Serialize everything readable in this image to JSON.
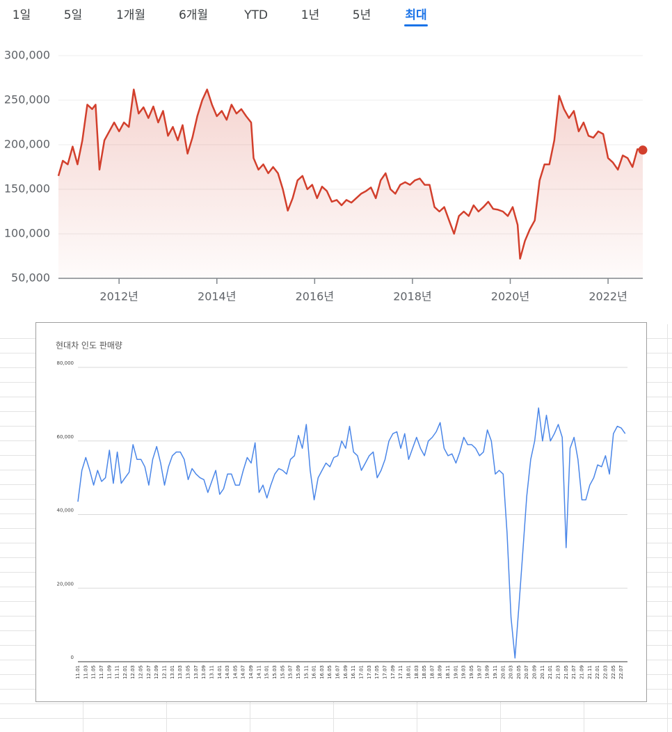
{
  "tabs": [
    "1일",
    "5일",
    "1개월",
    "6개월",
    "YTD",
    "1년",
    "5년",
    "최대"
  ],
  "active_tab_index": 7,
  "chart_data": [
    {
      "type": "area-line",
      "color": "#d23f2c",
      "grid": true,
      "xlim": [
        2010.76,
        2022.71
      ],
      "ylim": [
        50000,
        300000
      ],
      "xticks": [
        {
          "value": 2012,
          "label": "2012년"
        },
        {
          "value": 2014,
          "label": "2014년"
        },
        {
          "value": 2016,
          "label": "2016년"
        },
        {
          "value": 2018,
          "label": "2018년"
        },
        {
          "value": 2020,
          "label": "2020년"
        },
        {
          "value": 2022,
          "label": "2022년"
        }
      ],
      "yticks": [
        {
          "value": 50000,
          "label": "50,000"
        },
        {
          "value": 100000,
          "label": "100,000"
        },
        {
          "value": 150000,
          "label": "150,000"
        },
        {
          "value": 200000,
          "label": "200,000"
        },
        {
          "value": 250000,
          "label": "250,000"
        },
        {
          "value": 300000,
          "label": "300,000"
        }
      ],
      "x": [
        2010.76,
        2010.85,
        2010.95,
        2011.05,
        2011.15,
        2011.25,
        2011.35,
        2011.45,
        2011.52,
        2011.6,
        2011.7,
        2011.8,
        2011.9,
        2012.0,
        2012.1,
        2012.2,
        2012.3,
        2012.4,
        2012.5,
        2012.6,
        2012.7,
        2012.8,
        2012.9,
        2013.0,
        2013.1,
        2013.2,
        2013.3,
        2013.4,
        2013.5,
        2013.6,
        2013.7,
        2013.8,
        2013.9,
        2014.0,
        2014.1,
        2014.2,
        2014.3,
        2014.4,
        2014.5,
        2014.6,
        2014.7,
        2014.75,
        2014.85,
        2014.95,
        2015.05,
        2015.15,
        2015.25,
        2015.35,
        2015.45,
        2015.55,
        2015.65,
        2015.75,
        2015.85,
        2015.95,
        2016.05,
        2016.15,
        2016.25,
        2016.35,
        2016.45,
        2016.55,
        2016.65,
        2016.75,
        2016.85,
        2016.95,
        2017.05,
        2017.15,
        2017.25,
        2017.35,
        2017.45,
        2017.55,
        2017.65,
        2017.75,
        2017.85,
        2017.95,
        2018.05,
        2018.15,
        2018.25,
        2018.35,
        2018.45,
        2018.55,
        2018.65,
        2018.75,
        2018.85,
        2018.95,
        2019.05,
        2019.15,
        2019.25,
        2019.35,
        2019.45,
        2019.55,
        2019.65,
        2019.75,
        2019.85,
        2019.95,
        2020.05,
        2020.15,
        2020.2,
        2020.3,
        2020.4,
        2020.5,
        2020.6,
        2020.7,
        2020.8,
        2020.9,
        2021.0,
        2021.1,
        2021.2,
        2021.3,
        2021.4,
        2021.5,
        2021.6,
        2021.7,
        2021.8,
        2021.9,
        2022.0,
        2022.1,
        2022.2,
        2022.3,
        2022.4,
        2022.5,
        2022.6,
        2022.71
      ],
      "values": [
        165000,
        182000,
        178000,
        198000,
        178000,
        205000,
        245000,
        240000,
        245000,
        172000,
        205000,
        215000,
        225000,
        215000,
        225000,
        220000,
        262000,
        235000,
        242000,
        230000,
        243000,
        225000,
        238000,
        210000,
        220000,
        205000,
        222000,
        190000,
        208000,
        232000,
        250000,
        262000,
        245000,
        232000,
        238000,
        228000,
        245000,
        235000,
        240000,
        232000,
        225000,
        185000,
        172000,
        178000,
        168000,
        175000,
        168000,
        150000,
        126000,
        140000,
        160000,
        165000,
        150000,
        155000,
        140000,
        153000,
        148000,
        136000,
        138000,
        132000,
        138000,
        135000,
        140000,
        145000,
        148000,
        152000,
        140000,
        160000,
        168000,
        150000,
        145000,
        155000,
        158000,
        155000,
        160000,
        162000,
        155000,
        155000,
        130000,
        125000,
        130000,
        115000,
        100000,
        120000,
        125000,
        120000,
        132000,
        125000,
        130000,
        136000,
        128000,
        127000,
        125000,
        120000,
        130000,
        110000,
        72000,
        92000,
        105000,
        115000,
        160000,
        178000,
        178000,
        205000,
        255000,
        240000,
        230000,
        238000,
        215000,
        225000,
        210000,
        208000,
        215000,
        212000,
        185000,
        180000,
        172000,
        188000,
        185000,
        175000,
        195000,
        194000
      ]
    },
    {
      "type": "line",
      "title": "현대차 인도 판매량",
      "color": "#4a86e8",
      "grid": true,
      "ylim": [
        0,
        80000
      ],
      "yticks": [
        0,
        {
          "value": 20000,
          "label": "20,000"
        },
        {
          "value": 40000,
          "label": "40,000"
        },
        {
          "value": 60000,
          "label": "60,000"
        },
        {
          "value": 80000,
          "label": "80,000"
        }
      ],
      "categories": [
        "11.01",
        null,
        "11.03",
        null,
        "11.05",
        null,
        "11.07",
        null,
        "11.09",
        null,
        "11.11",
        null,
        "12.01",
        null,
        "12.03",
        null,
        "12.05",
        null,
        "12.07",
        null,
        "12.09",
        null,
        "12.11",
        null,
        "13.01",
        null,
        "13.03",
        null,
        "13.05",
        null,
        "13.07",
        null,
        "13.09",
        null,
        "13.11",
        null,
        "14.01",
        null,
        "14.03",
        null,
        "14.05",
        null,
        "14.07",
        null,
        "14.09",
        null,
        "14.11",
        null,
        "15.01",
        null,
        "15.03",
        null,
        "15.05",
        null,
        "15.07",
        null,
        "15.09",
        null,
        "15.11",
        null,
        "16.01",
        null,
        "16.03",
        null,
        "16.05",
        null,
        "16.07",
        null,
        "16.09",
        null,
        "16.11",
        null,
        "17.01",
        null,
        "17.03",
        null,
        "17.05",
        null,
        "17.07",
        null,
        "17.09",
        null,
        "17.11",
        null,
        "18.01",
        null,
        "18.03",
        null,
        "18.05",
        null,
        "18.07",
        null,
        "18.09",
        null,
        "18.11",
        null,
        "19.01",
        null,
        "19.03",
        null,
        "19.05",
        null,
        "19.07",
        null,
        "19.09",
        null,
        "19.11",
        null,
        "20.01",
        null,
        "20.03",
        null,
        "20.05",
        null,
        "20.07",
        null,
        "20.09",
        null,
        "20.11",
        null,
        "21.01",
        null,
        "21.03",
        null,
        "21.05",
        null,
        "21.07",
        null,
        "21.09",
        null,
        "21.11",
        null,
        "22.01",
        null,
        "22.03",
        null,
        "22.05",
        null,
        "22.07",
        null
      ],
      "values": [
        43500,
        52000,
        55500,
        52000,
        48000,
        52000,
        49000,
        50000,
        57500,
        48500,
        57000,
        48500,
        50000,
        51500,
        59000,
        55000,
        55000,
        53000,
        48000,
        55000,
        58500,
        54000,
        48000,
        53000,
        56000,
        57000,
        57000,
        55000,
        49500,
        52500,
        51000,
        50000,
        49500,
        46000,
        49000,
        52000,
        45500,
        47000,
        51000,
        51000,
        48000,
        48000,
        52000,
        55500,
        54000,
        59500,
        46000,
        48000,
        44500,
        48000,
        51000,
        52500,
        52000,
        51000,
        55000,
        56000,
        61500,
        58000,
        64500,
        52000,
        44000,
        50000,
        52000,
        54000,
        53000,
        55500,
        56000,
        60000,
        58000,
        64000,
        57000,
        56000,
        52000,
        54000,
        56000,
        57000,
        50000,
        52000,
        55000,
        60000,
        62000,
        62500,
        58000,
        62000,
        55000,
        58000,
        61000,
        58000,
        56000,
        60000,
        61000,
        62500,
        65000,
        58000,
        56000,
        56500,
        54000,
        57000,
        61000,
        59000,
        59000,
        58000,
        56000,
        57000,
        63000,
        60000,
        51000,
        52000,
        51000,
        35000,
        12000,
        1000,
        15000,
        30000,
        45000,
        55000,
        60000,
        69000,
        60000,
        67000,
        60000,
        62000,
        64500,
        61000,
        31000,
        58000,
        61000,
        55000,
        44000,
        44000,
        48000,
        50000,
        53500,
        53000,
        56000,
        51000,
        62000,
        64000,
        63500,
        62000
      ]
    }
  ]
}
